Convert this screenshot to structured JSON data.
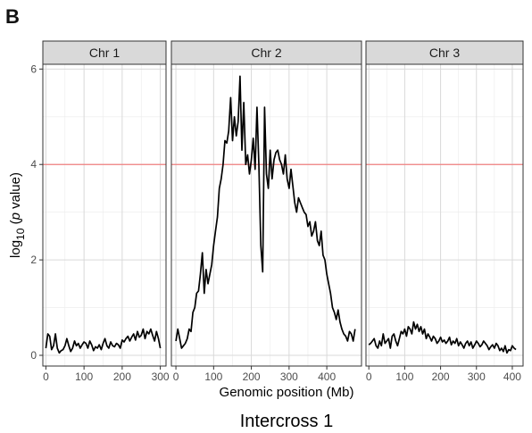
{
  "panel_label": "B",
  "caption": "Intercross 1",
  "colors": {
    "threshold": "#f08080",
    "line": "#000000",
    "strip": "#d9d9d9",
    "grid": "#ebebeb"
  },
  "chart_data": {
    "type": "line",
    "title": "",
    "xlabel": "Genomic position (Mb)",
    "ylabel_main": "log",
    "ylabel_sub": "10",
    "ylabel_rest": " (",
    "ylabel_italic": "p",
    "ylabel_end": " value)",
    "ylim": [
      0,
      6.1
    ],
    "yticks": [
      0,
      2,
      4,
      6
    ],
    "threshold": 4.0,
    "grid": true,
    "facets": [
      {
        "name": "Chr 1",
        "xlim": [
          -8,
          315
        ],
        "xticks": [
          0,
          100,
          200,
          300
        ],
        "x": [
          0,
          5,
          10,
          15,
          20,
          25,
          30,
          35,
          40,
          45,
          50,
          55,
          60,
          65,
          70,
          75,
          80,
          85,
          90,
          95,
          100,
          105,
          110,
          115,
          120,
          125,
          130,
          135,
          140,
          145,
          150,
          155,
          160,
          165,
          170,
          175,
          180,
          185,
          190,
          195,
          200,
          205,
          210,
          215,
          220,
          225,
          230,
          235,
          240,
          245,
          250,
          255,
          260,
          265,
          270,
          275,
          280,
          285,
          290,
          295,
          300
        ],
        "y": [
          0.15,
          0.45,
          0.4,
          0.12,
          0.2,
          0.45,
          0.15,
          0.05,
          0.1,
          0.12,
          0.2,
          0.35,
          0.2,
          0.08,
          0.15,
          0.3,
          0.2,
          0.25,
          0.15,
          0.22,
          0.28,
          0.25,
          0.15,
          0.3,
          0.22,
          0.1,
          0.18,
          0.15,
          0.22,
          0.12,
          0.25,
          0.35,
          0.2,
          0.15,
          0.28,
          0.2,
          0.18,
          0.25,
          0.22,
          0.15,
          0.32,
          0.28,
          0.35,
          0.4,
          0.3,
          0.38,
          0.45,
          0.32,
          0.5,
          0.38,
          0.42,
          0.55,
          0.35,
          0.5,
          0.45,
          0.55,
          0.42,
          0.3,
          0.5,
          0.35,
          0.15
        ]
      },
      {
        "name": "Chr 2",
        "xlim": [
          -12,
          492
        ],
        "xticks": [
          0,
          100,
          200,
          300,
          400
        ],
        "x": [
          0,
          5,
          10,
          15,
          20,
          25,
          30,
          35,
          40,
          45,
          50,
          55,
          60,
          65,
          70,
          75,
          80,
          85,
          90,
          95,
          100,
          105,
          110,
          115,
          120,
          125,
          130,
          135,
          140,
          145,
          150,
          155,
          160,
          165,
          170,
          175,
          180,
          185,
          190,
          195,
          200,
          205,
          210,
          215,
          220,
          225,
          230,
          235,
          240,
          245,
          250,
          255,
          260,
          265,
          270,
          275,
          280,
          285,
          290,
          295,
          300,
          305,
          310,
          315,
          320,
          325,
          330,
          335,
          340,
          345,
          350,
          355,
          360,
          365,
          370,
          375,
          380,
          385,
          390,
          395,
          400,
          405,
          410,
          415,
          420,
          425,
          430,
          435,
          440,
          445,
          450,
          455,
          460,
          465,
          470,
          475
        ],
        "y": [
          0.3,
          0.55,
          0.35,
          0.15,
          0.2,
          0.25,
          0.35,
          0.55,
          0.5,
          0.9,
          1.0,
          1.3,
          1.35,
          1.7,
          2.15,
          1.3,
          1.8,
          1.5,
          1.7,
          1.9,
          2.3,
          2.6,
          2.9,
          3.5,
          3.7,
          4.0,
          4.5,
          4.45,
          4.7,
          5.4,
          4.5,
          5.0,
          4.6,
          4.9,
          5.85,
          4.3,
          5.3,
          4.0,
          4.2,
          3.8,
          4.1,
          4.55,
          3.9,
          5.2,
          4.0,
          2.3,
          1.75,
          5.2,
          3.8,
          3.5,
          4.3,
          3.7,
          4.1,
          4.25,
          4.3,
          4.1,
          4.0,
          3.8,
          4.2,
          3.7,
          3.5,
          3.9,
          3.55,
          3.2,
          3.0,
          3.3,
          3.2,
          3.1,
          3.0,
          2.95,
          2.7,
          2.8,
          2.5,
          2.6,
          2.8,
          2.4,
          2.3,
          2.6,
          2.1,
          2.0,
          1.7,
          1.5,
          1.3,
          1.0,
          0.9,
          0.75,
          0.95,
          0.7,
          0.55,
          0.45,
          0.4,
          0.3,
          0.5,
          0.45,
          0.3,
          0.55
        ]
      },
      {
        "name": "Chr 3",
        "xlim": [
          -8,
          430
        ],
        "xticks": [
          0,
          100,
          200,
          300,
          400
        ],
        "x": [
          0,
          5,
          10,
          15,
          20,
          25,
          30,
          35,
          40,
          45,
          50,
          55,
          60,
          65,
          70,
          75,
          80,
          85,
          90,
          95,
          100,
          105,
          110,
          115,
          120,
          125,
          130,
          135,
          140,
          145,
          150,
          155,
          160,
          165,
          170,
          175,
          180,
          185,
          190,
          195,
          200,
          205,
          210,
          215,
          220,
          225,
          230,
          235,
          240,
          245,
          250,
          255,
          260,
          265,
          270,
          275,
          280,
          285,
          290,
          295,
          300,
          305,
          310,
          315,
          320,
          325,
          330,
          335,
          340,
          345,
          350,
          355,
          360,
          365,
          370,
          375,
          380,
          385,
          390,
          395,
          400,
          405,
          410
        ],
        "y": [
          0.22,
          0.25,
          0.3,
          0.35,
          0.2,
          0.15,
          0.3,
          0.2,
          0.45,
          0.25,
          0.3,
          0.35,
          0.15,
          0.4,
          0.45,
          0.3,
          0.2,
          0.35,
          0.5,
          0.45,
          0.55,
          0.4,
          0.6,
          0.55,
          0.45,
          0.7,
          0.55,
          0.65,
          0.5,
          0.6,
          0.45,
          0.55,
          0.35,
          0.45,
          0.38,
          0.3,
          0.4,
          0.35,
          0.25,
          0.3,
          0.38,
          0.28,
          0.32,
          0.25,
          0.3,
          0.38,
          0.22,
          0.3,
          0.25,
          0.35,
          0.2,
          0.28,
          0.22,
          0.15,
          0.25,
          0.3,
          0.2,
          0.28,
          0.15,
          0.22,
          0.3,
          0.25,
          0.18,
          0.22,
          0.3,
          0.25,
          0.2,
          0.12,
          0.18,
          0.22,
          0.15,
          0.25,
          0.2,
          0.1,
          0.15,
          0.08,
          0.2,
          0.05,
          0.12,
          0.1,
          0.2,
          0.15,
          0.12
        ]
      }
    ]
  }
}
